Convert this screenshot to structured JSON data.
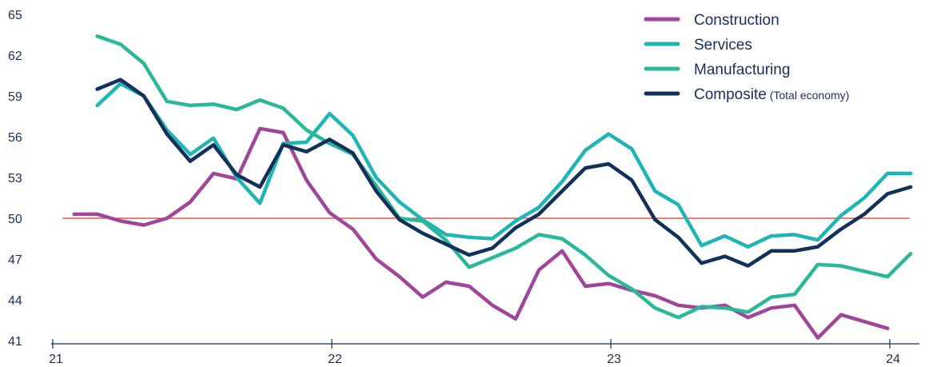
{
  "chart_data": {
    "type": "line",
    "title": "",
    "xlabel": "",
    "ylabel": "",
    "xlim": [
      2021.0,
      2024.05
    ],
    "ylim": [
      41,
      65
    ],
    "y_ticks": [
      41,
      44,
      47,
      50,
      53,
      56,
      59,
      62,
      65
    ],
    "x_ticks": [
      {
        "value": 2021,
        "label": "21"
      },
      {
        "value": 2022,
        "label": "22"
      },
      {
        "value": 2023,
        "label": "23"
      },
      {
        "value": 2024,
        "label": "24"
      }
    ],
    "reference_line": {
      "y": 50,
      "color": "#e03030"
    },
    "grid": false,
    "legend_position": "top-right",
    "series": [
      {
        "name": "Construction",
        "note": "",
        "color": "#a0469a",
        "start": 2021.042,
        "step": 0.0833,
        "values": [
          50.3,
          50.3,
          49.8,
          49.5,
          50.0,
          51.2,
          53.3,
          52.9,
          56.6,
          56.3,
          52.8,
          50.4,
          49.2,
          47.0,
          45.7,
          44.2,
          45.3,
          45.0,
          43.6,
          42.6,
          46.2,
          47.6,
          45.0,
          45.2,
          44.7,
          44.3,
          43.6,
          43.4,
          43.6,
          42.7,
          43.4,
          43.6,
          41.2,
          42.9,
          42.4,
          41.9
        ]
      },
      {
        "name": "Services",
        "note": "",
        "color": "#1fb5b5",
        "start": 2021.125,
        "step": 0.0833,
        "values": [
          58.3,
          59.9,
          59.0,
          56.5,
          54.7,
          55.9,
          53.0,
          51.1,
          55.5,
          55.6,
          57.7,
          56.1,
          53.0,
          51.2,
          49.9,
          48.8,
          48.6,
          48.5,
          49.8,
          50.8,
          52.7,
          55.0,
          56.2,
          55.1,
          52.0,
          51.0,
          48.0,
          48.7,
          47.9,
          48.7,
          48.8,
          48.4,
          50.2,
          51.5,
          53.3,
          53.3
        ]
      },
      {
        "name": "Manufacturing",
        "note": "",
        "color": "#2ab89a",
        "start": 2021.125,
        "step": 0.0833,
        "values": [
          63.4,
          62.8,
          61.4,
          58.6,
          58.3,
          58.4,
          58.0,
          58.7,
          58.1,
          56.5,
          55.5,
          54.7,
          52.4,
          50.0,
          49.8,
          48.4,
          46.4,
          47.1,
          47.8,
          48.8,
          48.5,
          47.3,
          45.8,
          44.8,
          43.4,
          42.7,
          43.5,
          43.4,
          43.1,
          44.2,
          44.4,
          46.6,
          46.5,
          46.1,
          45.7,
          47.4
        ]
      },
      {
        "name": "Composite",
        "note": "(Total economy)",
        "color": "#13305a",
        "start": 2021.125,
        "step": 0.0833,
        "values": [
          59.5,
          60.2,
          59.0,
          56.2,
          54.2,
          55.4,
          53.2,
          52.3,
          55.4,
          54.9,
          55.8,
          54.8,
          52.0,
          49.9,
          48.9,
          48.1,
          47.3,
          47.8,
          49.3,
          50.3,
          52.0,
          53.7,
          54.0,
          52.8,
          49.9,
          48.6,
          46.7,
          47.2,
          46.5,
          47.6,
          47.6,
          47.9,
          49.2,
          50.3,
          51.8,
          52.3
        ]
      }
    ]
  }
}
